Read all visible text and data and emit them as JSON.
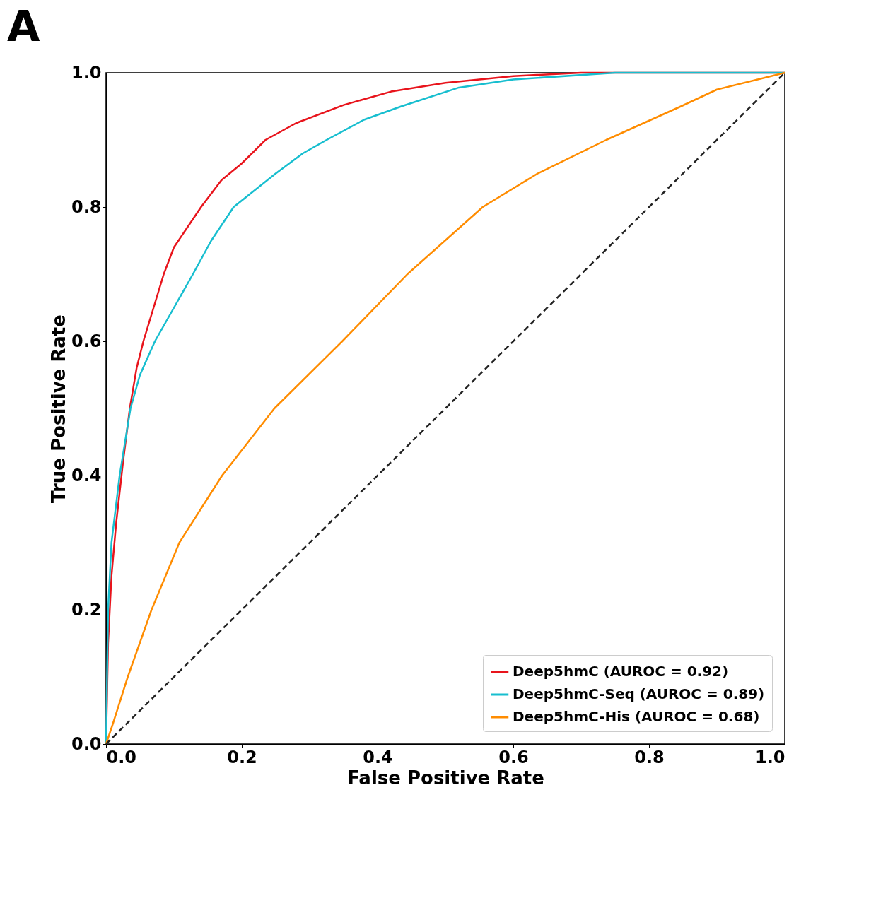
{
  "chart_data": {
    "type": "line",
    "title": "A",
    "xlabel": "False Positive Rate",
    "ylabel": "True Positive Rate",
    "xlim": [
      0,
      1
    ],
    "ylim": [
      0,
      1
    ],
    "xticks": [
      {
        "value": 0,
        "label": "0.0"
      },
      {
        "value": 0.2,
        "label": "0.2"
      },
      {
        "value": 0.4,
        "label": "0.4"
      },
      {
        "value": 0.6,
        "label": "0.6"
      },
      {
        "value": 0.8,
        "label": "0.8"
      },
      {
        "value": 1,
        "label": "1.0"
      }
    ],
    "yticks": [
      {
        "value": 0,
        "label": "0.0"
      },
      {
        "value": 0.2,
        "label": "0.2"
      },
      {
        "value": 0.4,
        "label": "0.4"
      },
      {
        "value": 0.6,
        "label": "0.6"
      },
      {
        "value": 0.8,
        "label": "0.8"
      },
      {
        "value": 1,
        "label": "1.0"
      }
    ],
    "grid": false,
    "legend": "bottom right",
    "marker": "none",
    "series": [
      {
        "name": "Deep5hmC (AUROC = 0.92)",
        "color": "#e8141c",
        "line_style": "solid",
        "x": [
          0,
          0.003,
          0.008,
          0.015,
          0.025,
          0.035,
          0.045,
          0.055,
          0.07,
          0.085,
          0.1,
          0.12,
          0.14,
          0.17,
          0.2,
          0.235,
          0.28,
          0.35,
          0.42,
          0.5,
          0.6,
          0.7,
          1
        ],
        "values": [
          0,
          0.15,
          0.25,
          0.33,
          0.42,
          0.5,
          0.56,
          0.6,
          0.65,
          0.7,
          0.74,
          0.77,
          0.8,
          0.84,
          0.865,
          0.9,
          0.925,
          0.952,
          0.972,
          0.985,
          0.995,
          1,
          1
        ]
      },
      {
        "name": "Deep5hmC-Seq (AUROC = 0.89)",
        "color": "#17becf",
        "line_style": "solid",
        "x": [
          0,
          0.003,
          0.008,
          0.02,
          0.036,
          0.05,
          0.072,
          0.1,
          0.128,
          0.155,
          0.188,
          0.25,
          0.29,
          0.325,
          0.38,
          0.435,
          0.52,
          0.6,
          0.75,
          1
        ],
        "values": [
          0,
          0.2,
          0.3,
          0.4,
          0.5,
          0.55,
          0.6,
          0.65,
          0.7,
          0.75,
          0.8,
          0.85,
          0.88,
          0.9,
          0.93,
          0.95,
          0.978,
          0.99,
          1,
          1
        ]
      },
      {
        "name": "Deep5hmC-His (AUROC = 0.68)",
        "color": "#ff8c00",
        "line_style": "solid",
        "x": [
          0,
          0.01,
          0.032,
          0.067,
          0.108,
          0.171,
          0.248,
          0.348,
          0.444,
          0.555,
          0.636,
          0.737,
          0.847,
          0.9,
          1
        ],
        "values": [
          0,
          0.03,
          0.1,
          0.2,
          0.3,
          0.4,
          0.5,
          0.6,
          0.7,
          0.8,
          0.85,
          0.9,
          0.95,
          0.975,
          1
        ]
      },
      {
        "color": "#222222",
        "line_style": "dashed",
        "x": [
          0,
          1
        ],
        "values": [
          0,
          1
        ]
      }
    ]
  }
}
